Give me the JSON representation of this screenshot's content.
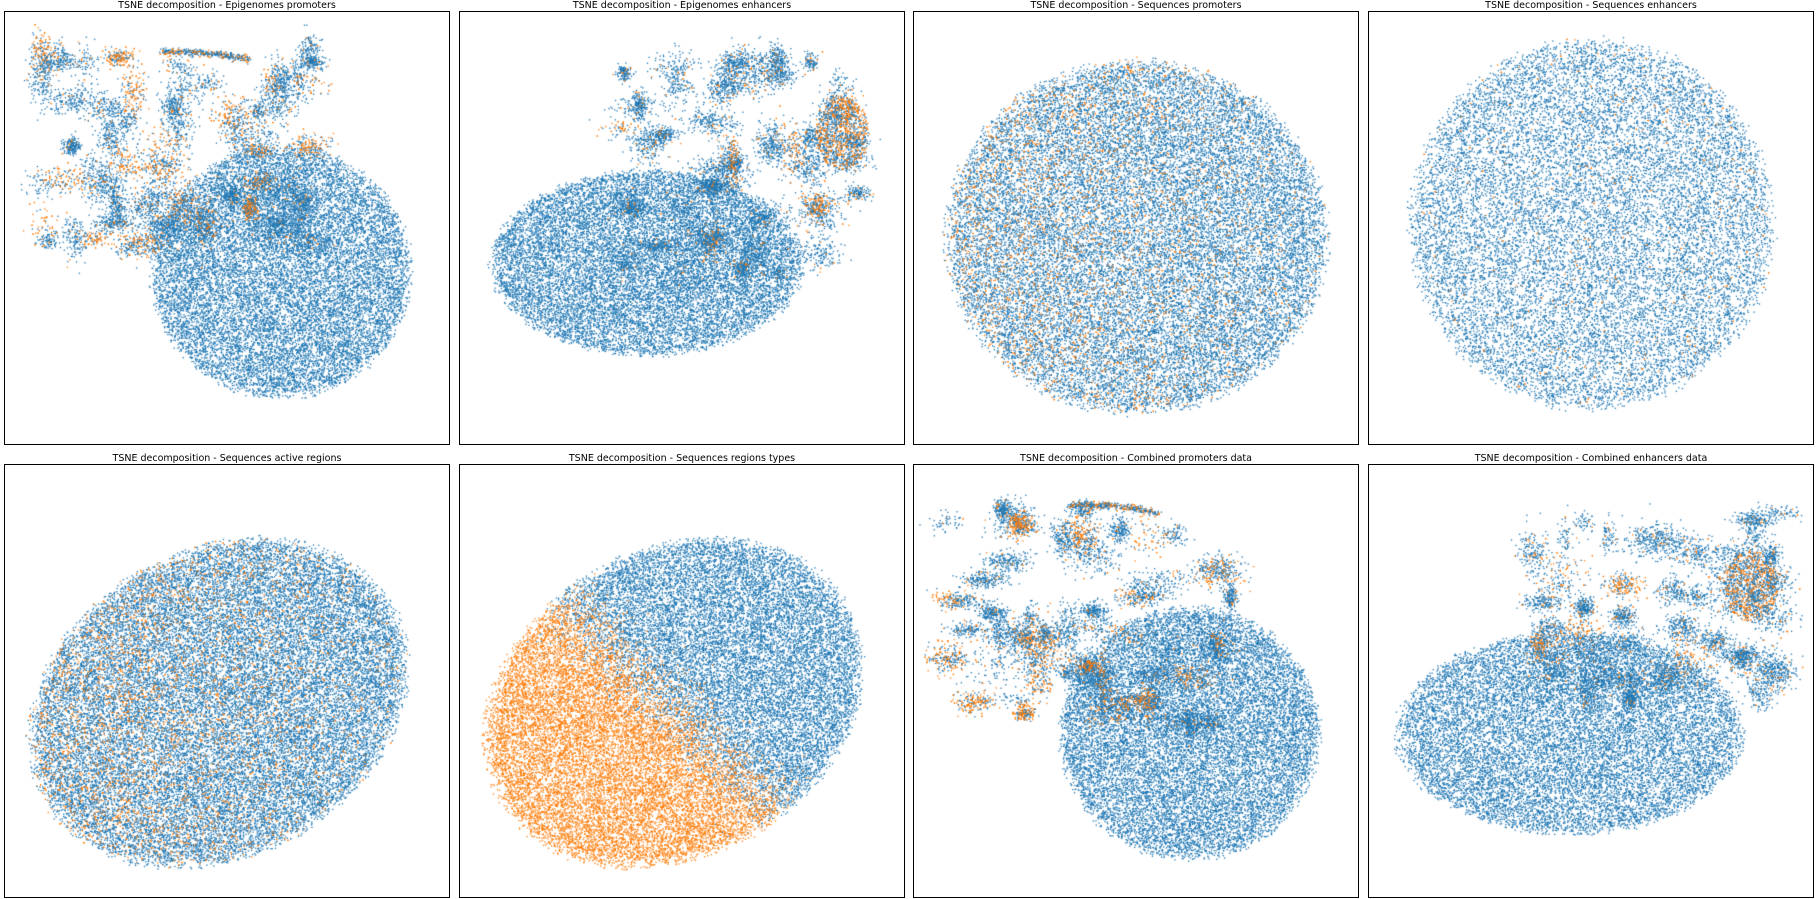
{
  "figure": {
    "colors": {
      "blue": "#1f77b4",
      "orange": "#ff7f0e"
    }
  },
  "chart_data": [
    {
      "type": "scatter",
      "title": "TSNE decomposition - Epigenomes promoters",
      "xlabel": "",
      "ylabel": "",
      "axis_ticks": "none",
      "grid": false,
      "legend": "none",
      "series": [
        {
          "color": "#1f77b4",
          "points": "dense"
        },
        {
          "color": "#ff7f0e",
          "points": "sparse, concentrated upper-left clusters"
        }
      ]
    },
    {
      "type": "scatter",
      "title": "TSNE decomposition - Epigenomes enhancers",
      "xlabel": "",
      "ylabel": "",
      "axis_ticks": "none",
      "grid": false,
      "legend": "none",
      "series": [
        {
          "color": "#1f77b4",
          "points": "dense"
        },
        {
          "color": "#ff7f0e",
          "points": "sparse, concentrated upper-right cluster"
        }
      ]
    },
    {
      "type": "scatter",
      "title": "TSNE decomposition - Sequences promoters",
      "xlabel": "",
      "ylabel": "",
      "axis_ticks": "none",
      "grid": false,
      "legend": "none",
      "series": [
        {
          "color": "#1f77b4",
          "points": "dense"
        },
        {
          "color": "#ff7f0e",
          "points": "sparse, left side"
        }
      ]
    },
    {
      "type": "scatter",
      "title": "TSNE decomposition - Sequences enhancers",
      "xlabel": "",
      "ylabel": "",
      "axis_ticks": "none",
      "grid": false,
      "legend": "none",
      "series": [
        {
          "color": "#1f77b4",
          "points": "dense"
        },
        {
          "color": "#ff7f0e",
          "points": "very sparse, upper-left"
        }
      ]
    },
    {
      "type": "scatter",
      "title": "TSNE decomposition - Sequences active regions",
      "xlabel": "",
      "ylabel": "",
      "axis_ticks": "none",
      "grid": false,
      "legend": "none",
      "series": [
        {
          "color": "#1f77b4",
          "points": "dense"
        },
        {
          "color": "#ff7f0e",
          "points": "sparse, lower-left"
        }
      ]
    },
    {
      "type": "scatter",
      "title": "TSNE decomposition - Sequences regions types",
      "xlabel": "",
      "ylabel": "",
      "axis_ticks": "none",
      "grid": false,
      "legend": "none",
      "series": [
        {
          "color": "#1f77b4",
          "points": "dense, upper-right"
        },
        {
          "color": "#ff7f0e",
          "points": "dense, lower-left"
        }
      ]
    },
    {
      "type": "scatter",
      "title": "TSNE decomposition - Combined promoters data",
      "xlabel": "",
      "ylabel": "",
      "axis_ticks": "none",
      "grid": false,
      "legend": "none",
      "series": [
        {
          "color": "#1f77b4",
          "points": "dense"
        },
        {
          "color": "#ff7f0e",
          "points": "sparse, upper clusters"
        }
      ]
    },
    {
      "type": "scatter",
      "title": "TSNE decomposition - Combined enhancers data",
      "xlabel": "",
      "ylabel": "",
      "axis_ticks": "none",
      "grid": false,
      "legend": "none",
      "series": [
        {
          "color": "#1f77b4",
          "points": "dense"
        },
        {
          "color": "#ff7f0e",
          "points": "sparse, upper-right cluster"
        }
      ]
    }
  ]
}
